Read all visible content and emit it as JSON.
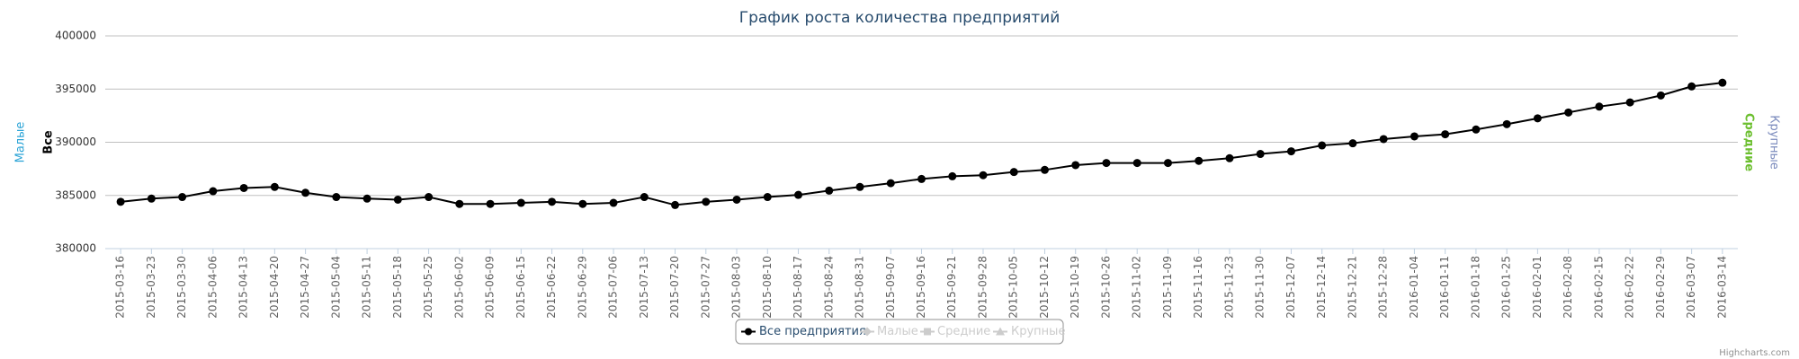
{
  "chart_data": {
    "type": "line",
    "title": "График роста количества предприятий",
    "categories": [
      "2015-03-16",
      "2015-03-23",
      "2015-03-30",
      "2015-04-06",
      "2015-04-13",
      "2015-04-20",
      "2015-04-27",
      "2015-05-04",
      "2015-05-11",
      "2015-05-18",
      "2015-05-25",
      "2015-06-02",
      "2015-06-09",
      "2015-06-15",
      "2015-06-22",
      "2015-06-29",
      "2015-07-06",
      "2015-07-13",
      "2015-07-20",
      "2015-07-27",
      "2015-08-03",
      "2015-08-10",
      "2015-08-17",
      "2015-08-24",
      "2015-08-31",
      "2015-09-07",
      "2015-09-16",
      "2015-09-21",
      "2015-09-28",
      "2015-10-05",
      "2015-10-12",
      "2015-10-19",
      "2015-10-26",
      "2015-11-02",
      "2015-11-09",
      "2015-11-16",
      "2015-11-23",
      "2015-11-30",
      "2015-12-07",
      "2015-12-14",
      "2015-12-21",
      "2015-12-28",
      "2016-01-04",
      "2016-01-11",
      "2016-01-18",
      "2016-01-25",
      "2016-02-01",
      "2016-02-08",
      "2016-02-15",
      "2016-02-22",
      "2016-02-29",
      "2016-03-07",
      "2016-03-14"
    ],
    "series": [
      {
        "name": "Все предприятия",
        "color": "#000000",
        "visible": true,
        "values": [
          384400,
          384700,
          384850,
          385400,
          385700,
          385800,
          385250,
          384850,
          384700,
          384600,
          384850,
          384200,
          384200,
          384300,
          384400,
          384200,
          384300,
          384850,
          384100,
          384400,
          384600,
          384850,
          385050,
          385450,
          385800,
          386150,
          386550,
          386800,
          386900,
          387200,
          387400,
          387850,
          388050,
          388050,
          388050,
          388250,
          388500,
          388900,
          389150,
          389700,
          389900,
          390300,
          390550,
          390750,
          391200,
          391700,
          392250,
          392800,
          393350,
          393750,
          394400,
          395250,
          395600
        ]
      },
      {
        "name": "Малые",
        "color": "#29a3d6",
        "visible": false
      },
      {
        "name": "Средние",
        "color": "#6cbf2f",
        "visible": false
      },
      {
        "name": "Крупные",
        "color": "#7b8bbd",
        "visible": false
      }
    ],
    "ylim": [
      380000,
      400000
    ],
    "yticks": [
      380000,
      385000,
      390000,
      395000,
      400000
    ],
    "grid": true,
    "axis_titles": [
      {
        "text": "Малые",
        "color": "#29a3d6",
        "bold": false
      },
      {
        "text": "Все",
        "color": "#000000",
        "bold": true
      },
      {
        "text": "Средние",
        "color": "#6cbf2f",
        "bold": true
      },
      {
        "text": "Крупные",
        "color": "#7b8bbd",
        "bold": false
      }
    ],
    "credits": "Highcharts.com"
  }
}
